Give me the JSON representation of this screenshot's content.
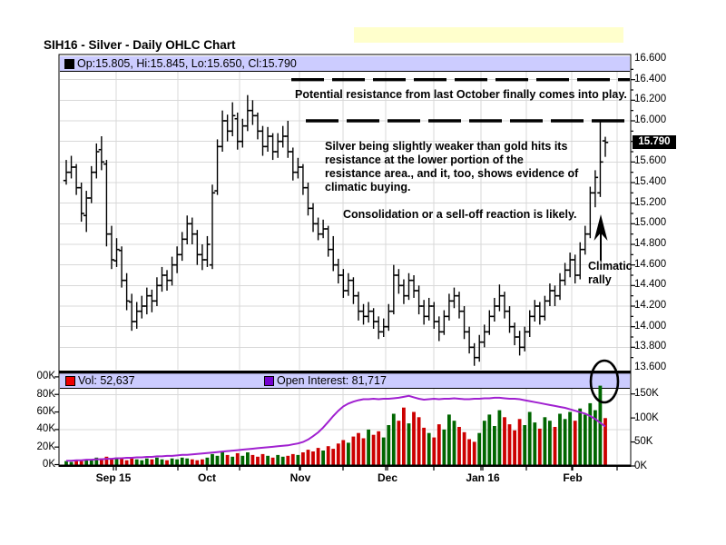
{
  "title": "SIH16 - Silver - Daily OHLC Chart",
  "colors": {
    "highlight": "#ffffcc",
    "legend_bg": "#ccccff",
    "grid": "#d8d8d8",
    "bar": "#000000",
    "volume_up": "#006600",
    "volume_down": "#cc0000",
    "vol_square": "#ee0000",
    "oi_square": "#7500d0",
    "open_interest_line": "#a020d0",
    "tag_bg": "#000000",
    "tag_text": "#ffffff"
  },
  "price_panel": {
    "legend_text": "Op:15.805, Hi:15.845, Lo:15.650, Cl:15.790",
    "last_price_tag": "15.790",
    "y_tick_labels": [
      "16.600",
      "16.400",
      "16.200",
      "16.000",
      "15.600",
      "15.400",
      "15.200",
      "15.000",
      "14.800",
      "14.600",
      "14.400",
      "14.200",
      "14.000",
      "13.800",
      "13.600"
    ],
    "annotations": {
      "resistance": "Potential resistance from last October finally comes into play.",
      "weakness": "Silver being slightly weaker than gold hits its\nresistance at the lower portion of the\nresistance area., and it, too, shows evidence of\nclimatic buying.",
      "consolidation": "Consolidation or a sell-off reaction is likely.",
      "climactic": "Climatic\nrally"
    }
  },
  "volume_panel": {
    "vol_legend": "Vol: 52,637",
    "oi_legend": "Open Interest: 81,717",
    "left_tick_labels": [
      "00K",
      "80K",
      "60K",
      "40K",
      "20K",
      "0K"
    ],
    "right_tick_labels": [
      "150K",
      "100K",
      "50K",
      "0K"
    ]
  },
  "x_axis": {
    "month_labels": [
      "Sep 15",
      "Oct",
      "Nov",
      "Dec",
      "Jan 16",
      "Feb"
    ],
    "month_x": [
      125,
      228,
      331,
      427,
      532,
      631
    ]
  },
  "chart_data": {
    "type": "ohlc",
    "title": "SIH16 - Silver - Daily OHLC Chart",
    "subpanels": [
      "daily OHLC price bars",
      "volume bars with open interest line"
    ],
    "price_ylim": [
      13.6,
      16.6
    ],
    "price_tick_step": 0.2,
    "volume_left_ylim_k": [
      0,
      100
    ],
    "volume_right_ylim_k": [
      0,
      150
    ],
    "resistance_levels": [
      16.4,
      16.0
    ],
    "months": [
      "Sep 15",
      "Oct",
      "Nov",
      "Dec",
      "Jan 16",
      "Feb"
    ],
    "last_bar": {
      "open": 15.805,
      "high": 15.845,
      "low": 15.65,
      "close": 15.79,
      "volume": 52637,
      "open_interest": 81717
    },
    "ohlc": [
      [
        15.42,
        15.62,
        15.38,
        15.5
      ],
      [
        15.5,
        15.66,
        15.44,
        15.55
      ],
      [
        15.55,
        15.58,
        15.28,
        15.35
      ],
      [
        15.35,
        15.4,
        15.02,
        15.1
      ],
      [
        15.08,
        15.32,
        14.92,
        15.25
      ],
      [
        15.25,
        15.56,
        15.2,
        15.5
      ],
      [
        15.5,
        15.78,
        15.44,
        15.7
      ],
      [
        15.72,
        15.85,
        15.52,
        15.6
      ],
      [
        15.58,
        15.62,
        14.78,
        14.9
      ],
      [
        14.9,
        14.98,
        14.56,
        14.65
      ],
      [
        14.64,
        14.86,
        14.58,
        14.75
      ],
      [
        14.74,
        14.78,
        14.38,
        14.45
      ],
      [
        14.45,
        14.52,
        14.16,
        14.25
      ],
      [
        14.24,
        14.32,
        13.96,
        14.05
      ],
      [
        14.05,
        14.24,
        13.98,
        14.15
      ],
      [
        14.15,
        14.3,
        14.08,
        14.2
      ],
      [
        14.2,
        14.38,
        14.12,
        14.3
      ],
      [
        14.3,
        14.36,
        14.14,
        14.25
      ],
      [
        14.25,
        14.48,
        14.2,
        14.4
      ],
      [
        14.4,
        14.58,
        14.34,
        14.5
      ],
      [
        14.5,
        14.55,
        14.35,
        14.45
      ],
      [
        14.45,
        14.68,
        14.4,
        14.6
      ],
      [
        14.6,
        14.78,
        14.52,
        14.7
      ],
      [
        14.7,
        14.92,
        14.64,
        14.85
      ],
      [
        14.85,
        15.08,
        14.8,
        15.0
      ],
      [
        15.0,
        15.06,
        14.8,
        14.9
      ],
      [
        14.9,
        14.94,
        14.6,
        14.7
      ],
      [
        14.7,
        14.8,
        14.55,
        14.65
      ],
      [
        14.65,
        14.88,
        14.58,
        14.8
      ],
      [
        14.6,
        15.38,
        14.56,
        15.3
      ],
      [
        15.32,
        15.82,
        15.28,
        15.75
      ],
      [
        15.75,
        16.1,
        15.7,
        16.0
      ],
      [
        16.0,
        16.06,
        15.8,
        15.9
      ],
      [
        15.9,
        16.18,
        15.85,
        16.05
      ],
      [
        16.02,
        16.08,
        15.72,
        15.8
      ],
      [
        15.8,
        16.02,
        15.74,
        15.95
      ],
      [
        15.95,
        16.25,
        15.9,
        16.1
      ],
      [
        16.1,
        16.2,
        15.96,
        16.05
      ],
      [
        16.05,
        16.08,
        15.82,
        15.9
      ],
      [
        15.9,
        15.95,
        15.66,
        15.75
      ],
      [
        15.75,
        15.94,
        15.7,
        15.85
      ],
      [
        15.85,
        15.88,
        15.62,
        15.7
      ],
      [
        15.7,
        15.88,
        15.64,
        15.8
      ],
      [
        15.8,
        15.95,
        15.74,
        15.85
      ],
      [
        15.85,
        16.0,
        15.64,
        15.7
      ],
      [
        15.7,
        15.74,
        15.42,
        15.5
      ],
      [
        15.5,
        15.64,
        15.44,
        15.55
      ],
      [
        15.55,
        15.58,
        15.28,
        15.35
      ],
      [
        15.35,
        15.4,
        15.08,
        15.15
      ],
      [
        15.15,
        15.2,
        14.92,
        15.0
      ],
      [
        15.0,
        15.06,
        14.84,
        14.9
      ],
      [
        14.9,
        15.04,
        14.86,
        14.95
      ],
      [
        14.95,
        14.98,
        14.68,
        14.75
      ],
      [
        14.75,
        14.88,
        14.54,
        14.6
      ],
      [
        14.6,
        14.66,
        14.42,
        14.5
      ],
      [
        14.5,
        14.56,
        14.28,
        14.35
      ],
      [
        14.35,
        14.52,
        14.3,
        14.45
      ],
      [
        14.45,
        14.48,
        14.22,
        14.3
      ],
      [
        14.3,
        14.34,
        14.06,
        14.15
      ],
      [
        14.15,
        14.22,
        14.02,
        14.1
      ],
      [
        14.1,
        14.24,
        14.04,
        14.15
      ],
      [
        14.15,
        14.18,
        13.98,
        14.05
      ],
      [
        14.05,
        14.1,
        13.88,
        13.95
      ],
      [
        13.95,
        14.08,
        13.9,
        14.0
      ],
      [
        14.0,
        14.22,
        13.96,
        14.15
      ],
      [
        14.15,
        14.6,
        14.12,
        14.5
      ],
      [
        14.5,
        14.56,
        14.32,
        14.4
      ],
      [
        14.4,
        14.46,
        14.22,
        14.3
      ],
      [
        14.3,
        14.52,
        14.26,
        14.45
      ],
      [
        14.45,
        14.5,
        14.28,
        14.35
      ],
      [
        14.35,
        14.4,
        14.12,
        14.2
      ],
      [
        14.2,
        14.26,
        14.02,
        14.1
      ],
      [
        14.1,
        14.28,
        14.06,
        14.2
      ],
      [
        14.2,
        14.24,
        13.98,
        14.05
      ],
      [
        14.05,
        14.1,
        13.86,
        13.95
      ],
      [
        13.95,
        14.16,
        13.92,
        14.1
      ],
      [
        14.1,
        14.32,
        14.06,
        14.25
      ],
      [
        14.25,
        14.38,
        14.18,
        14.3
      ],
      [
        14.3,
        14.34,
        14.08,
        14.15
      ],
      [
        14.15,
        14.2,
        13.88,
        13.95
      ],
      [
        13.95,
        14.0,
        13.74,
        13.8
      ],
      [
        13.8,
        13.84,
        13.62,
        13.7
      ],
      [
        13.7,
        13.92,
        13.66,
        13.85
      ],
      [
        13.85,
        14.02,
        13.8,
        13.95
      ],
      [
        13.95,
        14.16,
        13.92,
        14.1
      ],
      [
        14.1,
        14.28,
        14.05,
        14.2
      ],
      [
        14.2,
        14.41,
        14.15,
        14.3
      ],
      [
        14.3,
        14.34,
        14.08,
        14.15
      ],
      [
        14.15,
        14.2,
        13.94,
        14.0
      ],
      [
        14.0,
        14.04,
        13.82,
        13.9
      ],
      [
        13.9,
        13.96,
        13.72,
        13.8
      ],
      [
        13.8,
        14.0,
        13.76,
        13.95
      ],
      [
        13.95,
        14.16,
        13.9,
        14.1
      ],
      [
        14.1,
        14.26,
        14.05,
        14.2
      ],
      [
        14.2,
        14.24,
        14.02,
        14.1
      ],
      [
        14.1,
        14.3,
        14.06,
        14.25
      ],
      [
        14.25,
        14.42,
        14.2,
        14.35
      ],
      [
        14.35,
        14.4,
        14.2,
        14.3
      ],
      [
        14.3,
        14.52,
        14.26,
        14.45
      ],
      [
        14.45,
        14.62,
        14.4,
        14.55
      ],
      [
        14.55,
        14.72,
        14.48,
        14.65
      ],
      [
        14.65,
        14.7,
        14.42,
        14.5
      ],
      [
        14.5,
        14.82,
        14.46,
        14.75
      ],
      [
        14.75,
        14.98,
        14.7,
        14.9
      ],
      [
        14.9,
        15.36,
        14.86,
        15.3
      ],
      [
        15.3,
        15.52,
        15.16,
        15.45
      ],
      [
        15.3,
        16.0,
        15.26,
        15.6
      ],
      [
        15.805,
        15.845,
        15.65,
        15.79
      ]
    ],
    "volume_k": [
      4,
      3,
      5,
      4,
      6,
      5,
      8,
      7,
      9,
      6,
      8,
      7,
      5,
      8,
      6,
      5,
      7,
      6,
      8,
      6,
      5,
      7,
      6,
      8,
      7,
      6,
      5,
      6,
      8,
      12,
      10,
      14,
      11,
      9,
      13,
      10,
      14,
      11,
      9,
      12,
      10,
      8,
      11,
      9,
      10,
      12,
      11,
      14,
      17,
      15,
      19,
      16,
      21,
      18,
      24,
      28,
      25,
      32,
      36,
      30,
      40,
      34,
      38,
      31,
      45,
      58,
      50,
      65,
      47,
      60,
      54,
      42,
      36,
      31,
      46,
      40,
      57,
      50,
      43,
      37,
      29,
      26,
      36,
      50,
      57,
      44,
      62,
      54,
      46,
      39,
      52,
      45,
      60,
      48,
      41,
      54,
      50,
      43,
      58,
      52,
      60,
      50,
      64,
      57,
      70,
      62,
      90,
      53
    ],
    "open_interest_k": [
      11,
      11,
      12,
      12,
      13,
      13,
      14,
      14,
      15,
      15,
      16,
      16,
      17,
      17,
      18,
      18,
      19,
      19,
      20,
      20,
      21,
      21,
      22,
      23,
      23,
      24,
      25,
      26,
      27,
      28,
      29,
      30,
      31,
      32,
      33,
      34,
      35,
      36,
      37,
      38,
      39,
      40,
      41,
      42,
      43,
      45,
      47,
      50,
      55,
      62,
      70,
      80,
      92,
      104,
      115,
      124,
      130,
      134,
      137,
      139,
      139,
      140,
      139,
      140,
      140,
      141,
      142,
      144,
      146,
      143,
      140,
      138,
      139,
      140,
      139,
      140,
      140,
      141,
      140,
      139,
      139,
      140,
      140,
      141,
      141,
      142,
      142,
      141,
      140,
      140,
      139,
      137,
      135,
      133,
      131,
      129,
      127,
      125,
      123,
      121,
      118,
      115,
      112,
      109,
      104,
      98,
      90,
      82
    ],
    "grid_x": [
      128,
      196,
      264,
      330,
      378,
      425,
      478,
      530,
      580,
      630,
      680
    ]
  }
}
